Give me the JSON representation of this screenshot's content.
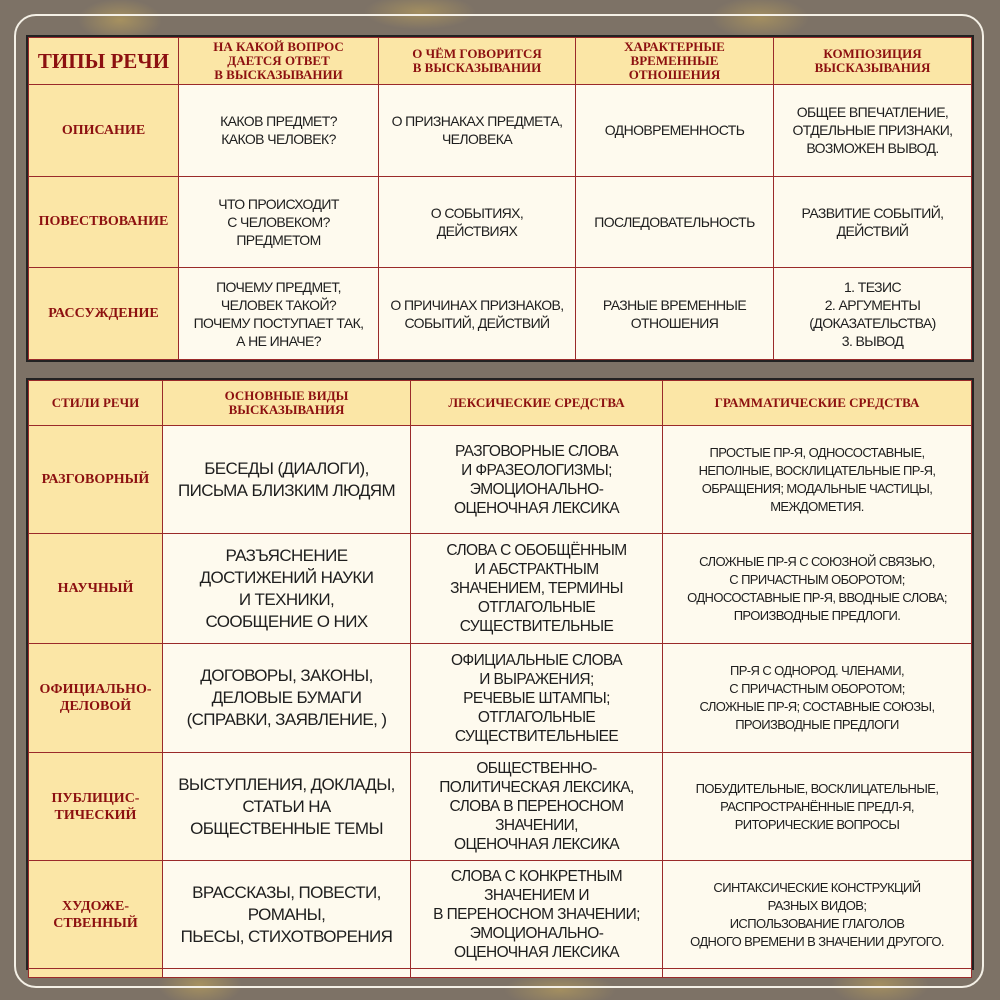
{
  "speech_types": {
    "headers": [
      "ТИПЫ РЕЧИ",
      "НА КАКОЙ ВОПРОС\nДАЕТСЯ ОТВЕТ\nВ ВЫСКАЗЫВАНИИ",
      "О ЧЁМ ГОВОРИТСЯ\nВ ВЫСКАЗЫВАНИИ",
      "ХАРАКТЕРНЫЕ\nВРЕМЕННЫЕ\nОТНОШЕНИЯ",
      "КОМПОЗИЦИЯ\nВЫСКАЗЫВАНИЯ"
    ],
    "rows": [
      {
        "type": "ОПИСАНИЕ",
        "cells": [
          "КАКОВ ПРЕДМЕТ?\nКАКОВ ЧЕЛОВЕК?",
          "О ПРИЗНАКАХ ПРЕДМЕТА,\nЧЕЛОВЕКА",
          "ОДНОВРЕМЕННОСТЬ",
          "ОБЩЕЕ ВПЕЧАТЛЕНИЕ,\nОТДЕЛЬНЫЕ  ПРИЗНАКИ,\nВОЗМОЖЕН ВЫВОД."
        ]
      },
      {
        "type": "ПОВЕСТВОВАНИЕ",
        "cells": [
          "ЧТО ПРОИСХОДИТ\nС ЧЕЛОВЕКОМ?\nПРЕДМЕТОМ",
          "О СОБЫТИЯХ,\nДЕЙСТВИЯХ",
          "ПОСЛЕДОВАТЕЛЬНОСТЬ",
          "РАЗВИТИЕ СОБЫТИЙ,\nДЕЙСТВИЙ"
        ]
      },
      {
        "type": "РАССУЖДЕНИЕ",
        "cells": [
          "ПОЧЕМУ ПРЕДМЕТ,\nЧЕЛОВЕК ТАКОЙ?\nПОЧЕМУ ПОСТУПАЕТ ТАК,\nА НЕ ИНАЧЕ?",
          "О ПРИЧИНАХ  ПРИЗНАКОВ,\nСОБЫТИЙ, ДЕЙСТВИЙ",
          "РАЗНЫЕ ВРЕМЕННЫЕ\nОТНОШЕНИЯ",
          "1. ТЕЗИС\n2. АРГУМЕНТЫ\n(ДОКАЗАТЕЛЬСТВА)\n3. ВЫВОД"
        ]
      }
    ]
  },
  "speech_styles": {
    "headers": [
      "СТИЛИ РЕЧИ",
      "ОСНОВНЫЕ ВИДЫ\nВЫСКАЗЫВАНИЯ",
      "ЛЕКСИЧЕСКИЕ СРЕДСТВА",
      "ГРАММАТИЧЕСКИЕ СРЕДСТВА"
    ],
    "rows": [
      {
        "style": "РАЗГОВОРНЫЙ",
        "cells": [
          "БЕСЕДЫ (ДИАЛОГИ),\nПИСЬМА  БЛИЗКИМ ЛЮДЯМ",
          "РАЗГОВОРНЫЕ СЛОВА\nИ ФРАЗЕОЛОГИЗМЫ;\nЭМОЦИОНАЛЬНО-\nОЦЕНОЧНАЯ ЛЕКСИКА",
          "ПРОСТЫЕ  ПР-Я, ОДНОСОСТАВНЫЕ,\nНЕПОЛНЫЕ, ВОСКЛИЦАТЕЛЬНЫЕ ПР-Я,\nОБРАЩЕНИЯ; МОДАЛЬНЫЕ ЧАСТИЦЫ,\nМЕЖДОМЕТИЯ."
        ]
      },
      {
        "style": "НАУЧНЫЙ",
        "cells": [
          "РАЗЪЯСНЕНИЕ\nДОСТИЖЕНИЙ НАУКИ\nИ ТЕХНИКИ,\nСООБЩЕНИЕ О НИХ",
          "СЛОВА С ОБОБЩЁННЫМ\nИ АБСТРАКТНЫМ\nЗНАЧЕНИЕМ, ТЕРМИНЫ\nОТГЛАГОЛЬНЫЕ\nСУЩЕСТВИТЕЛЬНЫЕ",
          "СЛОЖНЫЕ ПР-Я  С СОЮЗНОЙ СВЯЗЬЮ,\nС ПРИЧАСТНЫМ ОБОРОТОМ;\nОДНОСОСТАВНЫЕ ПР-Я, ВВОДНЫЕ СЛОВА;\nПРОИЗВОДНЫЕ ПРЕДЛОГИ."
        ]
      },
      {
        "style": "ОФИЦИАЛЬНО-\nДЕЛОВОЙ",
        "cells": [
          "ДОГОВОРЫ, ЗАКОНЫ,\nДЕЛОВЫЕ БУМАГИ\n(СПРАВКИ, ЗАЯВЛЕНИЕ, )",
          "ОФИЦИАЛЬНЫЕ СЛОВА\nИ ВЫРАЖЕНИЯ;\nРЕЧЕВЫЕ ШТАМПЫ;\nОТГЛАГОЛЬНЫЕ\nСУЩЕСТВИТЕЛЬНЫЕЕ",
          "ПР-Я С ОДНОРОД. ЧЛЕНАМИ,\nС ПРИЧАСТНЫМ ОБОРОТОМ;\nСЛОЖНЫЕ ПР-Я; СОСТАВНЫЕ СОЮЗЫ,\nПРОИЗВОДНЫЕ ПРЕДЛОГИ"
        ]
      },
      {
        "style": "ПУБЛИЦИС-\nТИЧЕСКИЙ",
        "cells": [
          "ВЫСТУПЛЕНИЯ, ДОКЛАДЫ,\nСТАТЬИ  НА\nОБЩЕСТВЕННЫЕ  ТЕМЫ",
          "ОБЩЕСТВЕННО-\nПОЛИТИЧЕСКАЯ ЛЕКСИКА,\nСЛОВА  В ПЕРЕНОСНОМ\nЗНАЧЕНИИ,\nОЦЕНОЧНАЯ ЛЕКСИКА",
          "ПОБУДИТЕЛЬНЫЕ, ВОСКЛИЦАТЕЛЬНЫЕ,\nРАСПРОСТРАНЁННЫЕ ПРЕДЛ-Я,\nРИТОРИЧЕСКИЕ  ВОПРОСЫ"
        ]
      },
      {
        "style": "ХУДОЖЕ-\nСТВЕННЫЙ",
        "cells": [
          "ВРАССКАЗЫ, ПОВЕСТИ,\nРОМАНЫ,\nПЬЕСЫ, СТИХОТВОРЕНИЯ",
          "СЛОВА  С  КОНКРЕТНЫМ\nЗНАЧЕНИЕМ И\nВ  ПЕРЕНОСНОМ  ЗНАЧЕНИИ;\nЭМОЦИОНАЛЬНО-\nОЦЕНОЧНАЯ ЛЕКСИКА",
          "СИНТАКСИЧЕСКИЕ КОНСТРУКЦИЙ\nРАЗНЫХ ВИДОВ;\nИСПОЛЬЗОВАНИЕ ГЛАГОЛОВ\nОДНОГО ВРЕМЕНИ В ЗНАЧЕНИИ ДРУГОГО."
        ]
      }
    ]
  },
  "colors": {
    "header_bg": "#fbe6a6",
    "cell_bg": "#fefaee",
    "heading_text": "#8c1010",
    "body_text": "#1e1e1e",
    "background": "#7d7266"
  }
}
